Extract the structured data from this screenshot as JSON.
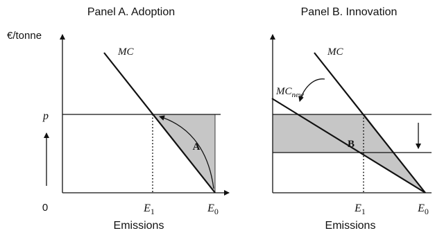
{
  "panel_a": {
    "title": "Panel A. Adoption",
    "y_label": "€/tonne",
    "x_label": "Emissions",
    "origin": "0",
    "price_label": "p",
    "curve_label": "MC",
    "area_label": "A",
    "tick_e1": {
      "base": "E",
      "sub": "1"
    },
    "tick_e0": {
      "base": "E",
      "sub": "0"
    }
  },
  "panel_b": {
    "title": "Panel B. Innovation",
    "x_label": "Emissions",
    "curve_label": "MC",
    "new_curve_label": {
      "base": "MC",
      "sub": "new"
    },
    "area_label": "B",
    "tick_e1": {
      "base": "E",
      "sub": "1"
    },
    "tick_e0": {
      "base": "E",
      "sub": "0"
    }
  },
  "colors": {
    "shade": "#c6c6c6",
    "line": "#111111"
  }
}
